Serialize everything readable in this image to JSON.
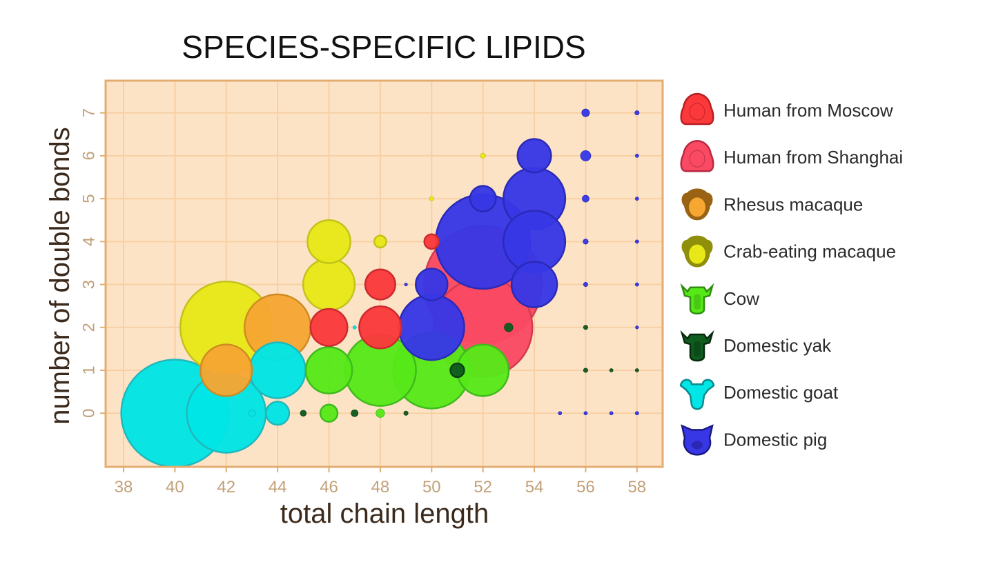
{
  "chart_data": {
    "type": "scatter",
    "subtype": "bubble",
    "title": "SPECIES-SPECIFIC LIPIDS",
    "xlabel": "total chain length",
    "ylabel": "number of double bonds",
    "xlim": [
      37.3,
      59.0
    ],
    "ylim": [
      -1.25,
      7.75
    ],
    "xticks": [
      38,
      40,
      42,
      44,
      46,
      48,
      50,
      52,
      54,
      56,
      58
    ],
    "yticks": [
      0,
      1,
      2,
      3,
      4,
      5,
      6,
      7
    ],
    "grid": true,
    "background": "#fde3c6",
    "grid_color": "#f7cfa3",
    "frame_color": "#e2ad72",
    "legend_position": "right",
    "bubble_size": "relative abundance (radius in y-axis units)",
    "series": [
      {
        "name": "Domestic goat",
        "color": "#00e5e5",
        "edge": "#20b8bc",
        "icon": "goat-icon",
        "points": [
          {
            "x": 40,
            "y": 0,
            "size": 1.25
          },
          {
            "x": 42,
            "y": 0,
            "size": 0.92
          },
          {
            "x": 43,
            "y": 0,
            "size": 0.08
          },
          {
            "x": 44,
            "y": 0,
            "size": 0.27
          },
          {
            "x": 44,
            "y": 1,
            "size": 0.65
          },
          {
            "x": 47,
            "y": 2,
            "size": 0.04
          }
        ]
      },
      {
        "name": "Rhesus macaque",
        "color": "#f6a732",
        "edge": "#d08a22",
        "icon": "rhesus-macaque-icon",
        "points": [
          {
            "x": 42,
            "y": 1,
            "size": 0.6
          },
          {
            "x": 44,
            "y": 2,
            "size": 0.77
          }
        ]
      },
      {
        "name": "Crab-eating macaque",
        "color": "#e8e818",
        "edge": "#c2c21a",
        "icon": "crab-eating-macaque-icon",
        "points": [
          {
            "x": 42,
            "y": 2,
            "size": 1.07
          },
          {
            "x": 46,
            "y": 4,
            "size": 0.5
          },
          {
            "x": 46,
            "y": 3,
            "size": 0.6
          },
          {
            "x": 48,
            "y": 4,
            "size": 0.14
          },
          {
            "x": 50,
            "y": 5,
            "size": 0.05
          },
          {
            "x": 52,
            "y": 6,
            "size": 0.06
          }
        ]
      },
      {
        "name": "Human from Moscow",
        "color": "#fb393b",
        "edge": "#cc2a2e",
        "icon": "human-moscow-icon",
        "points": [
          {
            "x": 46,
            "y": 2,
            "size": 0.43
          },
          {
            "x": 48,
            "y": 2,
            "size": 0.49
          },
          {
            "x": 48,
            "y": 3,
            "size": 0.35
          },
          {
            "x": 50,
            "y": 4,
            "size": 0.17
          }
        ]
      },
      {
        "name": "Cow",
        "color": "#56e818",
        "edge": "#3fba1c",
        "icon": "cow-icon",
        "points": [
          {
            "x": 46,
            "y": 1,
            "size": 0.54
          },
          {
            "x": 48,
            "y": 1,
            "size": 0.83
          },
          {
            "x": 50,
            "y": 1,
            "size": 0.89
          },
          {
            "x": 52,
            "y": 1,
            "size": 0.6
          },
          {
            "x": 46,
            "y": 0,
            "size": 0.2
          },
          {
            "x": 48,
            "y": 0,
            "size": 0.1
          }
        ]
      },
      {
        "name": "Domestic yak",
        "color": "#0f5c1f",
        "edge": "#0a4014",
        "icon": "yak-icon",
        "points": [
          {
            "x": 45,
            "y": 0,
            "size": 0.07
          },
          {
            "x": 47,
            "y": 0,
            "size": 0.08
          },
          {
            "x": 49,
            "y": 0,
            "size": 0.05
          },
          {
            "x": 51,
            "y": 1,
            "size": 0.16
          },
          {
            "x": 53,
            "y": 2,
            "size": 0.1
          },
          {
            "x": 56,
            "y": 2,
            "size": 0.05
          },
          {
            "x": 56,
            "y": 1,
            "size": 0.05
          },
          {
            "x": 57,
            "y": 1,
            "size": 0.04
          },
          {
            "x": 58,
            "y": 1,
            "size": 0.04
          }
        ]
      },
      {
        "name": "Domestic pig",
        "color": "#3737e6",
        "edge": "#2a2ab8",
        "icon": "pig-icon",
        "points": [
          {
            "x": 49,
            "y": 3,
            "size": 0.03
          },
          {
            "x": 50,
            "y": 3,
            "size": 0.37
          },
          {
            "x": 50,
            "y": 2,
            "size": 0.76
          },
          {
            "x": 52,
            "y": 5,
            "size": 0.3
          },
          {
            "x": 54,
            "y": 6,
            "size": 0.39
          },
          {
            "x": 54,
            "y": 5,
            "size": 0.72
          },
          {
            "x": 54,
            "y": 4,
            "size": 0.72
          },
          {
            "x": 54,
            "y": 3,
            "size": 0.53
          },
          {
            "x": 56,
            "y": 7,
            "size": 0.09
          },
          {
            "x": 56,
            "y": 6,
            "size": 0.12
          },
          {
            "x": 56,
            "y": 5,
            "size": 0.08
          },
          {
            "x": 56,
            "y": 4,
            "size": 0.06
          },
          {
            "x": 56,
            "y": 3,
            "size": 0.05
          },
          {
            "x": 56,
            "y": 0,
            "size": 0.04
          },
          {
            "x": 55,
            "y": 0,
            "size": 0.04
          },
          {
            "x": 57,
            "y": 0,
            "size": 0.04
          },
          {
            "x": 58,
            "y": 0,
            "size": 0.04
          },
          {
            "x": 58,
            "y": 3,
            "size": 0.04
          },
          {
            "x": 58,
            "y": 4,
            "size": 0.04
          },
          {
            "x": 58,
            "y": 5,
            "size": 0.04
          },
          {
            "x": 58,
            "y": 6,
            "size": 0.04
          },
          {
            "x": 58,
            "y": 7,
            "size": 0.05
          },
          {
            "x": 58,
            "y": 2,
            "size": 0.03
          }
        ]
      },
      {
        "name": "Human from Shanghai",
        "color": "#fa4a63",
        "edge": "#d23a50",
        "icon": "human-shanghai-icon",
        "points": [
          {
            "x": 52,
            "y": 2,
            "size": 1.15
          },
          {
            "x": 52,
            "y": 3,
            "size": 1.37
          }
        ]
      },
      {
        "name": "Domestic pig",
        "color": "#3737e6",
        "edge": "#2a2ab8",
        "icon": "pig-icon",
        "points": [
          {
            "x": 52,
            "y": 4,
            "size": 1.1
          }
        ]
      }
    ],
    "legend": [
      {
        "label": "Human from Moscow",
        "color": "#fb393b",
        "dark": "#b52024",
        "icon": "human-moscow-icon",
        "shape": "human"
      },
      {
        "label": "Human from Shanghai",
        "color": "#fa4a63",
        "dark": "#b52a40",
        "icon": "human-shanghai-icon",
        "shape": "human"
      },
      {
        "label": "Rhesus macaque",
        "color": "#f6a732",
        "dark": "#9a6314",
        "icon": "rhesus-macaque-icon",
        "shape": "monkey"
      },
      {
        "label": "Crab-eating macaque",
        "color": "#e8e818",
        "dark": "#8f8f0c",
        "icon": "crab-eating-macaque-icon",
        "shape": "monkey"
      },
      {
        "label": "Cow",
        "color": "#56e818",
        "dark": "#2f8e0c",
        "icon": "cow-icon",
        "shape": "cow"
      },
      {
        "label": "Domestic yak",
        "color": "#0f5c1f",
        "dark": "#062a0d",
        "icon": "yak-icon",
        "shape": "cow"
      },
      {
        "label": "Domestic goat",
        "color": "#00e5e5",
        "dark": "#0a8a8c",
        "icon": "goat-icon",
        "shape": "goat"
      },
      {
        "label": "Domestic pig",
        "color": "#3737e6",
        "dark": "#1a1a80",
        "icon": "pig-icon",
        "shape": "pig"
      }
    ]
  }
}
